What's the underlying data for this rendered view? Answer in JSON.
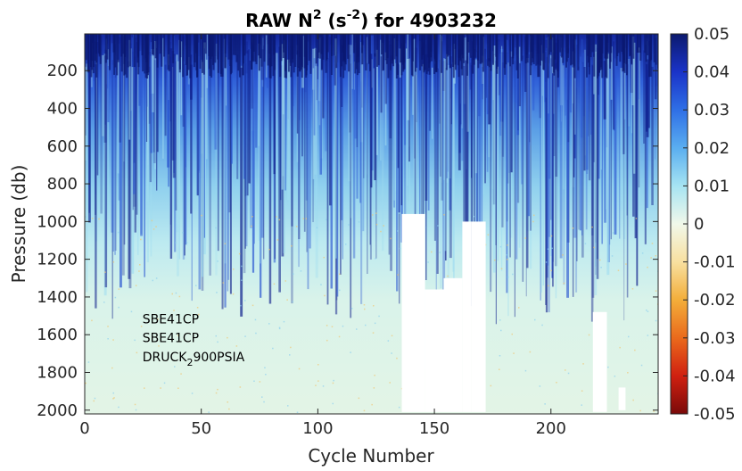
{
  "chart_data": {
    "type": "heatmap",
    "title": "RAW N",
    "title_sup1": "2",
    "title_mid": " (s",
    "title_sup2": "-2",
    "title_end": ") for 4903232",
    "xlabel": "Cycle Number",
    "ylabel": "Pressure (db)",
    "xlim": [
      0,
      246
    ],
    "ylim": [
      2020,
      5
    ],
    "y_reversed": true,
    "x_ticks": [
      0,
      50,
      100,
      150,
      200
    ],
    "y_ticks": [
      200,
      400,
      600,
      800,
      1000,
      1200,
      1400,
      1600,
      1800,
      2000
    ],
    "colorbar": {
      "colormap": "jet-like diverging",
      "clim": [
        -0.05,
        0.05
      ],
      "ticks": [
        "0.05",
        "0.04",
        "0.03",
        "0.02",
        "0.01",
        "0",
        "-0.01",
        "-0.02",
        "-0.03",
        "-0.04",
        "-0.05"
      ]
    },
    "annotations": [
      {
        "text": "SBE41CP",
        "x": 24,
        "y": 1540
      },
      {
        "text": "SBE41CP",
        "x": 24,
        "y": 1640
      },
      {
        "text": "DRUCK",
        "sub": "2",
        "after": "900PSIA",
        "x": 24,
        "y": 1740
      }
    ],
    "missing_regions": [
      {
        "x": [
          136,
          146
        ],
        "y_top": 960,
        "y_bottom": 2010
      },
      {
        "x": [
          146,
          154
        ],
        "y_top": 1360,
        "y_bottom": 2010
      },
      {
        "x": [
          154,
          162
        ],
        "y_top": 1300,
        "y_bottom": 2010
      },
      {
        "x": [
          162,
          166
        ],
        "y_top": 1000,
        "y_bottom": 2010
      },
      {
        "x": [
          166,
          172
        ],
        "y_top": 1000,
        "y_bottom": 2010
      },
      {
        "x": [
          218,
          224
        ],
        "y_top": 1480,
        "y_bottom": 2010
      },
      {
        "x": [
          229,
          232
        ],
        "y_top": 1880,
        "y_bottom": 2000
      }
    ],
    "grid": false
  }
}
